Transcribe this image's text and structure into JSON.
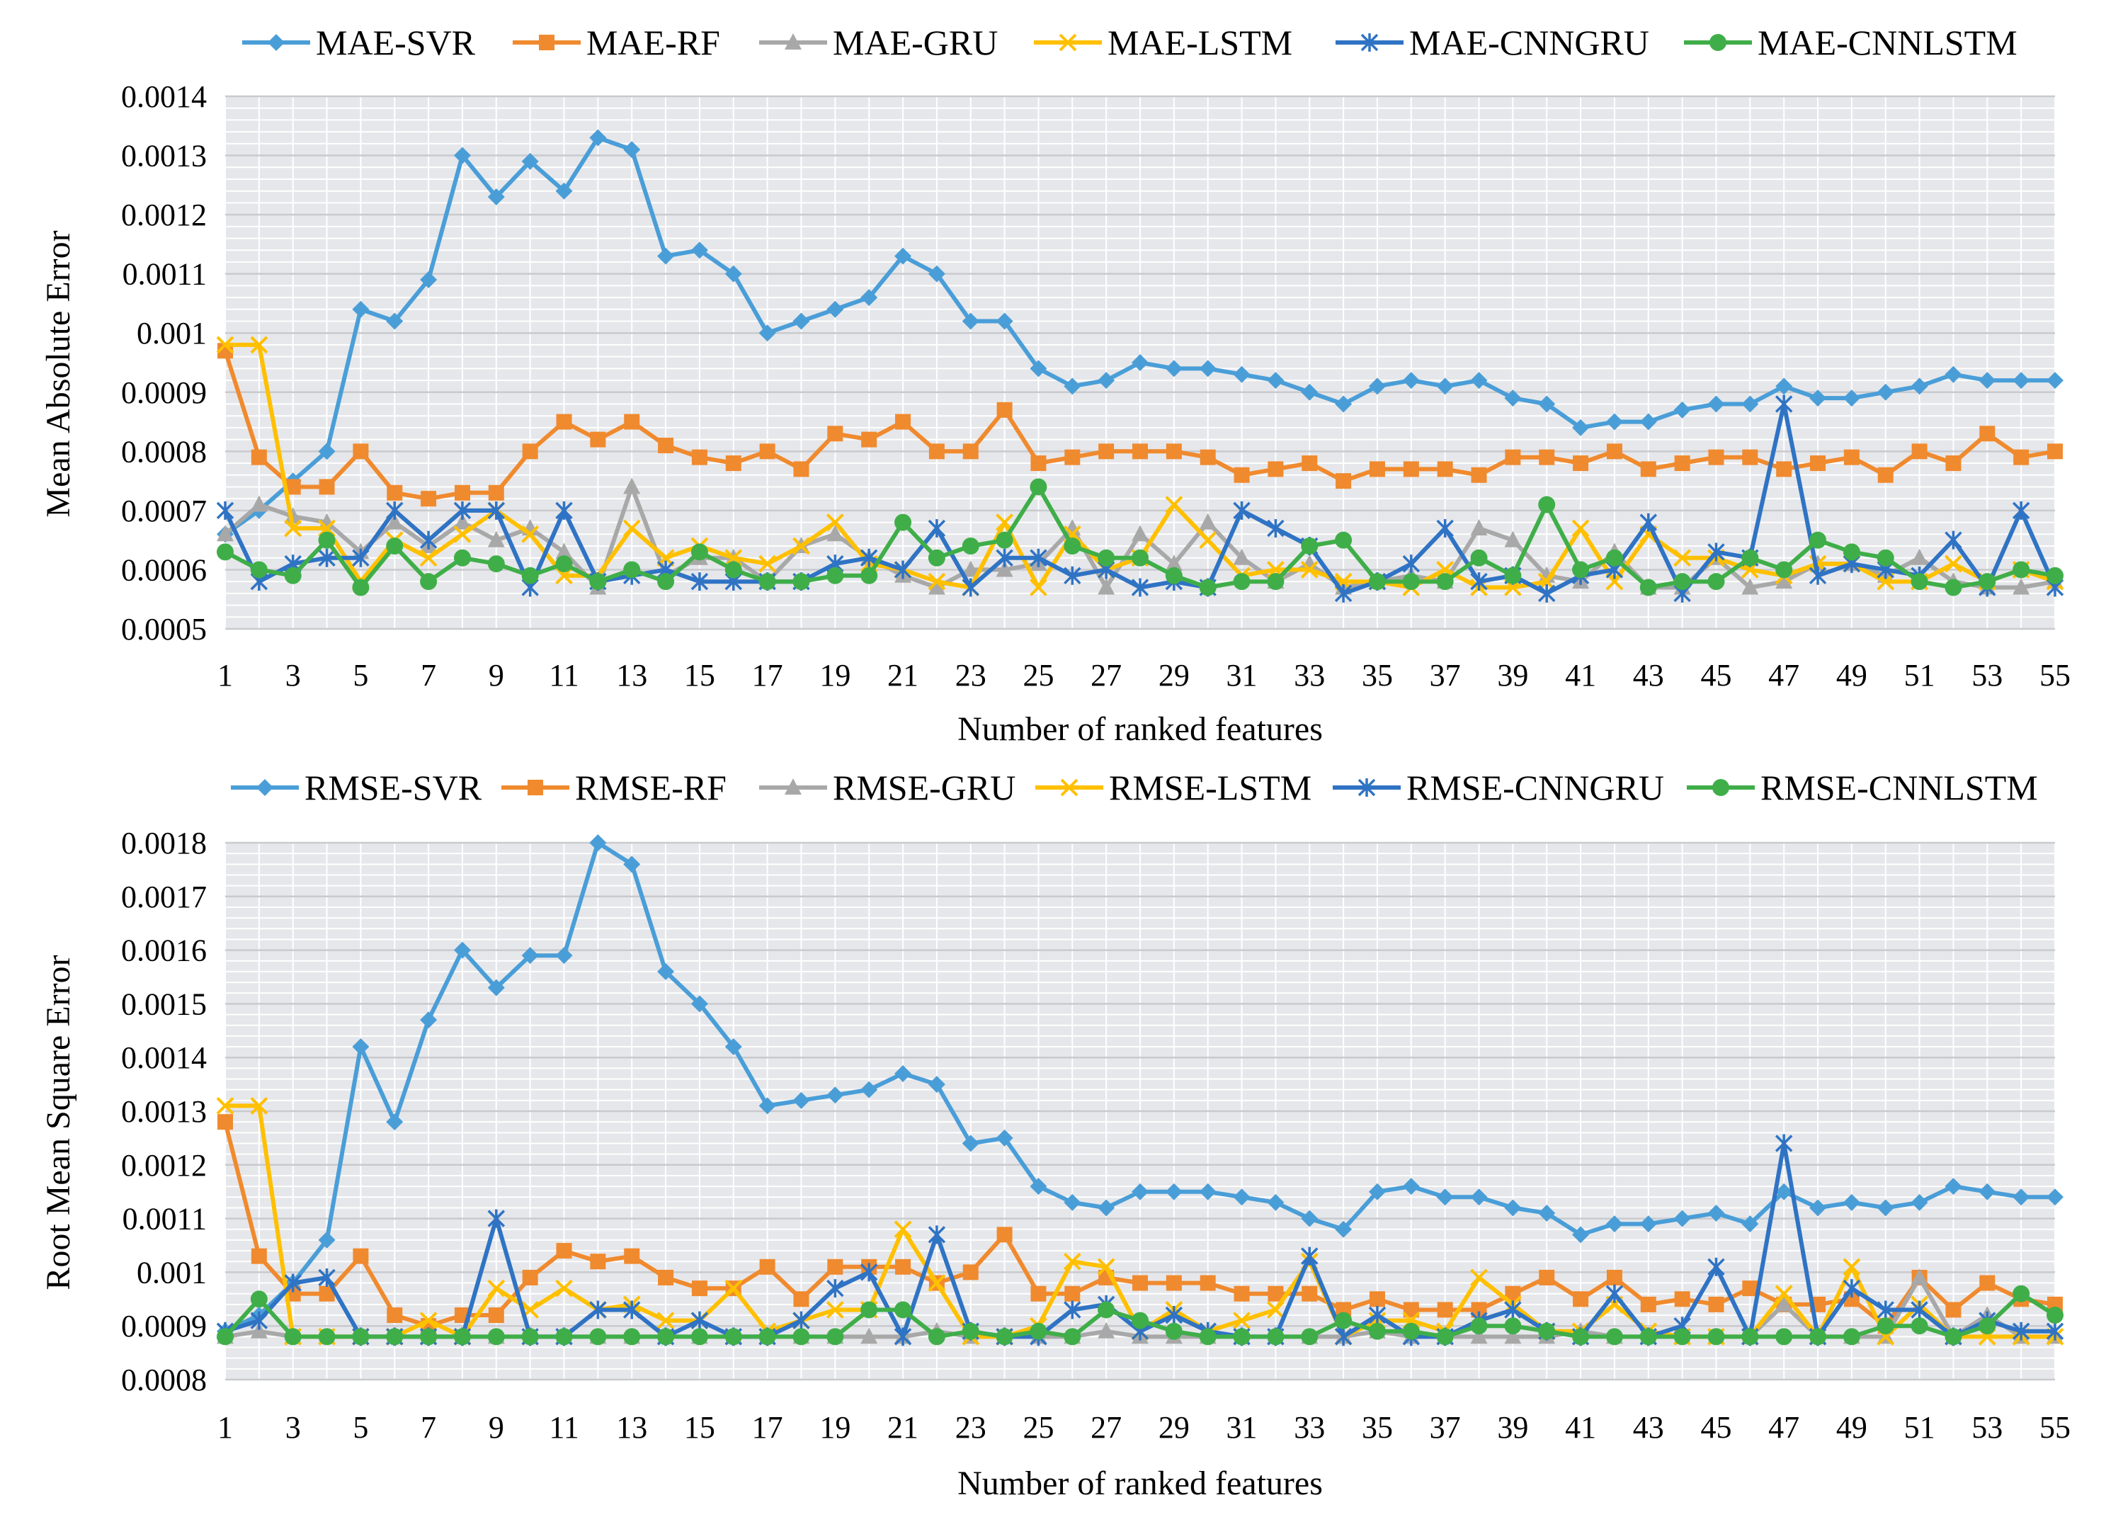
{
  "chart_data": [
    {
      "type": "line",
      "id": "mae",
      "title": "",
      "xlabel": "Number of ranked features",
      "ylabel": "Mean Absolute Error",
      "ylim": [
        0.0005,
        0.0014
      ],
      "yticks": [
        "0.0005",
        "0.0006",
        "0.0007",
        "0.0008",
        "0.0009",
        "0.001",
        "0.0011",
        "0.0012",
        "0.0013",
        "0.0014"
      ],
      "xticks": [
        "1",
        "3",
        "5",
        "7",
        "9",
        "11",
        "13",
        "15",
        "17",
        "19",
        "21",
        "23",
        "25",
        "27",
        "29",
        "31",
        "33",
        "35",
        "37",
        "39",
        "41",
        "43",
        "45",
        "47",
        "49",
        "51",
        "53",
        "55"
      ],
      "xrange": [
        1,
        55
      ],
      "legend_position": "top",
      "grid": true,
      "series": [
        {
          "name": "MAE-SVR",
          "color": "#4a9ed8",
          "marker": "diamond",
          "values": [
            0.00066,
            0.0007,
            0.00075,
            0.0008,
            0.00104,
            0.00102,
            0.00109,
            0.0013,
            0.00123,
            0.00129,
            0.00124,
            0.00133,
            0.00131,
            0.00113,
            0.00114,
            0.0011,
            0.001,
            0.00102,
            0.00104,
            0.00106,
            0.00113,
            0.0011,
            0.00102,
            0.00102,
            0.00094,
            0.00091,
            0.00092,
            0.00095,
            0.00094,
            0.00094,
            0.00093,
            0.00092,
            0.0009,
            0.00088,
            0.00091,
            0.00092,
            0.00091,
            0.00092,
            0.00089,
            0.00088,
            0.00084,
            0.00085,
            0.00085,
            0.00087,
            0.00088,
            0.00088,
            0.00091,
            0.00089,
            0.00089,
            0.0009,
            0.00091,
            0.00093,
            0.00092,
            0.00092,
            0.00092
          ]
        },
        {
          "name": "MAE-RF",
          "color": "#f08a2e",
          "marker": "square",
          "values": [
            0.00097,
            0.00079,
            0.00074,
            0.00074,
            0.0008,
            0.00073,
            0.00072,
            0.00073,
            0.00073,
            0.0008,
            0.00085,
            0.00082,
            0.00085,
            0.00081,
            0.00079,
            0.00078,
            0.0008,
            0.00077,
            0.00083,
            0.00082,
            0.00085,
            0.0008,
            0.0008,
            0.00087,
            0.00078,
            0.00079,
            0.0008,
            0.0008,
            0.0008,
            0.00079,
            0.00076,
            0.00077,
            0.00078,
            0.00075,
            0.00077,
            0.00077,
            0.00077,
            0.00076,
            0.00079,
            0.00079,
            0.00078,
            0.0008,
            0.00077,
            0.00078,
            0.00079,
            0.00079,
            0.00077,
            0.00078,
            0.00079,
            0.00076,
            0.0008,
            0.00078,
            0.00083,
            0.00079,
            0.0008
          ]
        },
        {
          "name": "MAE-GRU",
          "color": "#a8a8a8",
          "marker": "triangle",
          "values": [
            0.00066,
            0.00071,
            0.00069,
            0.00068,
            0.00063,
            0.00068,
            0.00064,
            0.00068,
            0.00065,
            0.00067,
            0.00063,
            0.00057,
            0.00074,
            0.00059,
            0.00062,
            0.00062,
            0.00058,
            0.00064,
            0.00066,
            0.00062,
            0.00059,
            0.00057,
            0.0006,
            0.0006,
            0.00061,
            0.00067,
            0.00057,
            0.00066,
            0.00061,
            0.00068,
            0.00062,
            0.00058,
            0.00061,
            0.00057,
            0.00058,
            0.00059,
            0.00058,
            0.00067,
            0.00065,
            0.00059,
            0.00058,
            0.00063,
            0.00057,
            0.00057,
            0.00062,
            0.00057,
            0.00058,
            0.00061,
            0.00061,
            0.00059,
            0.00062,
            0.00058,
            0.00057,
            0.00057,
            0.00058
          ]
        },
        {
          "name": "MAE-LSTM",
          "color": "#ffc000",
          "marker": "x",
          "values": [
            0.00098,
            0.00098,
            0.00067,
            0.00067,
            0.00058,
            0.00065,
            0.00062,
            0.00066,
            0.0007,
            0.00066,
            0.00059,
            0.00059,
            0.00067,
            0.00062,
            0.00064,
            0.00062,
            0.00061,
            0.00064,
            0.00068,
            0.00061,
            0.0006,
            0.00058,
            0.00057,
            0.00068,
            0.00057,
            0.00066,
            0.0006,
            0.00062,
            0.00071,
            0.00065,
            0.00059,
            0.0006,
            0.0006,
            0.00058,
            0.00058,
            0.00057,
            0.0006,
            0.00057,
            0.00057,
            0.00058,
            0.00067,
            0.00058,
            0.00066,
            0.00062,
            0.00062,
            0.0006,
            0.00059,
            0.00061,
            0.00061,
            0.00058,
            0.00058,
            0.00061,
            0.00058,
            0.0006,
            0.00058
          ]
        },
        {
          "name": "MAE-CNNGRU",
          "color": "#2f73c4",
          "marker": "star",
          "values": [
            0.0007,
            0.00058,
            0.00061,
            0.00062,
            0.00062,
            0.0007,
            0.00065,
            0.0007,
            0.0007,
            0.00057,
            0.0007,
            0.00058,
            0.00059,
            0.0006,
            0.00058,
            0.00058,
            0.00058,
            0.00058,
            0.00061,
            0.00062,
            0.0006,
            0.00067,
            0.00057,
            0.00062,
            0.00062,
            0.00059,
            0.0006,
            0.00057,
            0.00058,
            0.00057,
            0.0007,
            0.00067,
            0.00064,
            0.00056,
            0.00058,
            0.00061,
            0.00067,
            0.00058,
            0.00059,
            0.00056,
            0.00059,
            0.0006,
            0.00068,
            0.00056,
            0.00063,
            0.00062,
            0.00088,
            0.00059,
            0.00061,
            0.0006,
            0.00059,
            0.00065,
            0.00057,
            0.0007,
            0.00057
          ]
        },
        {
          "name": "MAE-CNNLSTM",
          "color": "#3fae49",
          "marker": "circle",
          "values": [
            0.00063,
            0.0006,
            0.00059,
            0.00065,
            0.00057,
            0.00064,
            0.00058,
            0.00062,
            0.00061,
            0.00059,
            0.00061,
            0.00058,
            0.0006,
            0.00058,
            0.00063,
            0.0006,
            0.00058,
            0.00058,
            0.00059,
            0.00059,
            0.00068,
            0.00062,
            0.00064,
            0.00065,
            0.00074,
            0.00064,
            0.00062,
            0.00062,
            0.00059,
            0.00057,
            0.00058,
            0.00058,
            0.00064,
            0.00065,
            0.00058,
            0.00058,
            0.00058,
            0.00062,
            0.00059,
            0.00071,
            0.0006,
            0.00062,
            0.00057,
            0.00058,
            0.00058,
            0.00062,
            0.0006,
            0.00065,
            0.00063,
            0.00062,
            0.00058,
            0.00057,
            0.00058,
            0.0006,
            0.00059
          ]
        }
      ]
    },
    {
      "type": "line",
      "id": "rmse",
      "title": "",
      "xlabel": "Number of ranked features",
      "ylabel": "Root Mean Square Error",
      "ylim": [
        0.0008,
        0.0018
      ],
      "yticks": [
        "0.0008",
        "0.0009",
        "0.001",
        "0.0011",
        "0.0012",
        "0.0013",
        "0.0014",
        "0.0015",
        "0.0016",
        "0.0017",
        "0.0018"
      ],
      "xticks": [
        "1",
        "3",
        "5",
        "7",
        "9",
        "11",
        "13",
        "15",
        "17",
        "19",
        "21",
        "23",
        "25",
        "27",
        "29",
        "31",
        "33",
        "35",
        "37",
        "39",
        "41",
        "43",
        "45",
        "47",
        "49",
        "51",
        "53",
        "55"
      ],
      "xrange": [
        1,
        55
      ],
      "legend_position": "top",
      "grid": true,
      "series": [
        {
          "name": "RMSE-SVR",
          "color": "#4a9ed8",
          "marker": "diamond",
          "values": [
            0.00089,
            0.00092,
            0.00098,
            0.00106,
            0.00142,
            0.00128,
            0.00147,
            0.0016,
            0.00153,
            0.00159,
            0.00159,
            0.0018,
            0.00176,
            0.00156,
            0.0015,
            0.00142,
            0.00131,
            0.00132,
            0.00133,
            0.00134,
            0.00137,
            0.00135,
            0.00124,
            0.00125,
            0.00116,
            0.00113,
            0.00112,
            0.00115,
            0.00115,
            0.00115,
            0.00114,
            0.00113,
            0.0011,
            0.00108,
            0.00115,
            0.00116,
            0.00114,
            0.00114,
            0.00112,
            0.00111,
            0.00107,
            0.00109,
            0.00109,
            0.0011,
            0.00111,
            0.00109,
            0.00115,
            0.00112,
            0.00113,
            0.00112,
            0.00113,
            0.00116,
            0.00115,
            0.00114,
            0.00114
          ]
        },
        {
          "name": "RMSE-RF",
          "color": "#f08a2e",
          "marker": "square",
          "values": [
            0.00128,
            0.00103,
            0.00096,
            0.00096,
            0.00103,
            0.00092,
            0.0009,
            0.00092,
            0.00092,
            0.00099,
            0.00104,
            0.00102,
            0.00103,
            0.00099,
            0.00097,
            0.00097,
            0.00101,
            0.00095,
            0.00101,
            0.00101,
            0.00101,
            0.00098,
            0.001,
            0.00107,
            0.00096,
            0.00096,
            0.00099,
            0.00098,
            0.00098,
            0.00098,
            0.00096,
            0.00096,
            0.00096,
            0.00093,
            0.00095,
            0.00093,
            0.00093,
            0.00093,
            0.00096,
            0.00099,
            0.00095,
            0.00099,
            0.00094,
            0.00095,
            0.00094,
            0.00097,
            0.00094,
            0.00094,
            0.00095,
            0.0009,
            0.00099,
            0.00093,
            0.00098,
            0.00095,
            0.00094
          ]
        },
        {
          "name": "RMSE-GRU",
          "color": "#a8a8a8",
          "marker": "triangle",
          "values": [
            0.00088,
            0.00089,
            0.00088,
            0.00088,
            0.00088,
            0.00088,
            0.00088,
            0.00088,
            0.00088,
            0.00088,
            0.00088,
            0.00088,
            0.00088,
            0.00088,
            0.00088,
            0.00088,
            0.00088,
            0.00088,
            0.00088,
            0.00088,
            0.00088,
            0.00089,
            0.00088,
            0.00088,
            0.00088,
            0.00088,
            0.00089,
            0.00088,
            0.00088,
            0.00088,
            0.00088,
            0.00088,
            0.00088,
            0.00088,
            0.00089,
            0.00088,
            0.00088,
            0.00088,
            0.00088,
            0.00088,
            0.00089,
            0.00088,
            0.00088,
            0.00088,
            0.00088,
            0.00088,
            0.00094,
            0.00088,
            0.00088,
            0.00088,
            0.00099,
            0.00088,
            0.00092,
            0.00088,
            0.00088
          ]
        },
        {
          "name": "RMSE-LSTM",
          "color": "#ffc000",
          "marker": "x",
          "values": [
            0.00131,
            0.00131,
            0.00088,
            0.00088,
            0.00088,
            0.00088,
            0.00091,
            0.00088,
            0.00097,
            0.00093,
            0.00097,
            0.00093,
            0.00094,
            0.00091,
            0.00091,
            0.00097,
            0.00089,
            0.00091,
            0.00093,
            0.00093,
            0.00108,
            0.00098,
            0.00088,
            0.00088,
            0.0009,
            0.00102,
            0.00101,
            0.00089,
            0.00093,
            0.00089,
            0.00091,
            0.00093,
            0.00102,
            0.00088,
            0.00091,
            0.00091,
            0.00089,
            0.00099,
            0.00094,
            0.00089,
            0.00089,
            0.00094,
            0.00089,
            0.00088,
            0.00088,
            0.00088,
            0.00096,
            0.00088,
            0.00101,
            0.00088,
            0.00094,
            0.00088,
            0.00088,
            0.00088,
            0.00088
          ]
        },
        {
          "name": "RMSE-CNNGRU",
          "color": "#2f73c4",
          "marker": "star",
          "values": [
            0.00089,
            0.00091,
            0.00098,
            0.00099,
            0.00088,
            0.00088,
            0.00088,
            0.00088,
            0.0011,
            0.00088,
            0.00088,
            0.00093,
            0.00093,
            0.00088,
            0.00091,
            0.00088,
            0.00088,
            0.00091,
            0.00097,
            0.001,
            0.00088,
            0.00107,
            0.00089,
            0.00088,
            0.00088,
            0.00093,
            0.00094,
            0.00089,
            0.00092,
            0.00089,
            0.00088,
            0.00088,
            0.00103,
            0.00088,
            0.00092,
            0.00088,
            0.00088,
            0.00091,
            0.00093,
            0.00089,
            0.00088,
            0.00096,
            0.00088,
            0.0009,
            0.00101,
            0.00088,
            0.00124,
            0.00088,
            0.00097,
            0.00093,
            0.00093,
            0.00088,
            0.00091,
            0.00089,
            0.00089
          ]
        },
        {
          "name": "RMSE-CNNLSTM",
          "color": "#3fae49",
          "marker": "circle",
          "values": [
            0.00088,
            0.00095,
            0.00088,
            0.00088,
            0.00088,
            0.00088,
            0.00088,
            0.00088,
            0.00088,
            0.00088,
            0.00088,
            0.00088,
            0.00088,
            0.00088,
            0.00088,
            0.00088,
            0.00088,
            0.00088,
            0.00088,
            0.00093,
            0.00093,
            0.00088,
            0.00089,
            0.00088,
            0.00089,
            0.00088,
            0.00093,
            0.00091,
            0.00089,
            0.00088,
            0.00088,
            0.00088,
            0.00088,
            0.00091,
            0.00089,
            0.00089,
            0.00088,
            0.0009,
            0.0009,
            0.00089,
            0.00088,
            0.00088,
            0.00088,
            0.00088,
            0.00088,
            0.00088,
            0.00088,
            0.00088,
            0.00088,
            0.0009,
            0.0009,
            0.00088,
            0.0009,
            0.00096,
            0.00092
          ]
        }
      ]
    }
  ]
}
